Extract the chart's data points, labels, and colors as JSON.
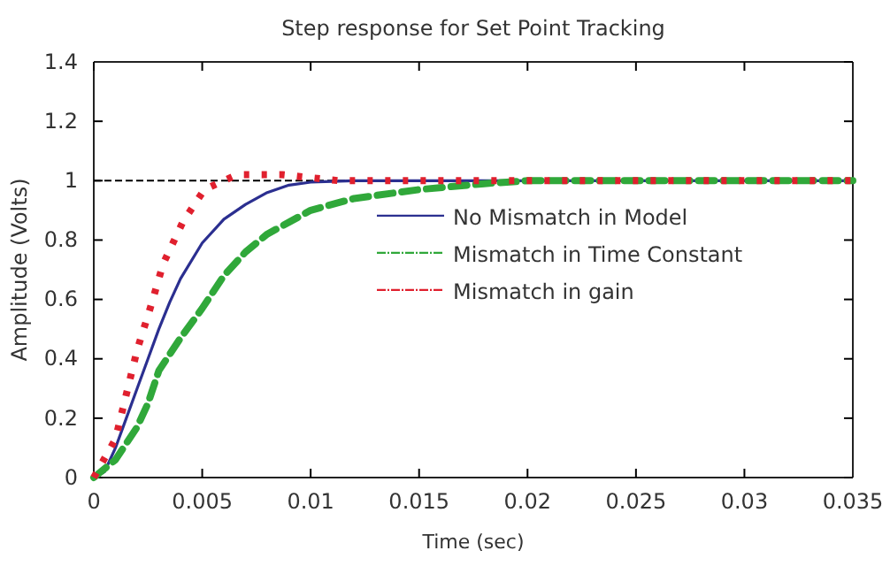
{
  "chart_data": {
    "type": "line",
    "title": "Step response for Set Point Tracking",
    "xlabel": "Time (sec)",
    "ylabel": "Amplitude (Volts)",
    "xlim": [
      0,
      0.035
    ],
    "xticks": [
      0,
      0.005,
      0.01,
      0.015,
      0.02,
      0.025,
      0.03,
      0.035
    ],
    "ylim": [
      0,
      1.4
    ],
    "yticks": [
      0,
      0.2,
      0.4,
      0.6,
      0.8,
      1,
      1.2,
      {
        "value": 1.4,
        "label": "1.4"
      }
    ],
    "grid": false,
    "legend": "right",
    "marker": "none",
    "ref_lines": [
      {
        "axis": "y",
        "value": 1,
        "color": "#000000",
        "line_style": "dashed"
      }
    ],
    "series": [
      {
        "name": "No Mismatch in Model",
        "color": "#2b2f90",
        "line_style": "solid",
        "x": [
          0,
          0.0005,
          0.001,
          0.0015,
          0.002,
          0.0025,
          0.003,
          0.0035,
          0.004,
          0.005,
          0.006,
          0.007,
          0.008,
          0.009,
          0.01,
          0.012,
          0.035
        ],
        "values": [
          0,
          0.02,
          0.1,
          0.2,
          0.3,
          0.4,
          0.5,
          0.59,
          0.67,
          0.79,
          0.87,
          0.92,
          0.96,
          0.985,
          0.995,
          1,
          1
        ]
      },
      {
        "name": "Mismatch in Time Constant",
        "color": "#30a83a",
        "line_style": "dashed",
        "x": [
          0,
          0.001,
          0.002,
          0.0025,
          0.003,
          0.004,
          0.005,
          0.006,
          0.007,
          0.008,
          0.01,
          0.012,
          0.015,
          0.018,
          0.02,
          0.035
        ],
        "values": [
          0,
          0.06,
          0.17,
          0.25,
          0.36,
          0.47,
          0.57,
          0.68,
          0.76,
          0.82,
          0.9,
          0.94,
          0.97,
          0.99,
          1,
          1
        ]
      },
      {
        "name": "Mismatch in gain",
        "color": "#e0202e",
        "line_style": "dotted",
        "x": [
          0,
          0.001,
          0.0015,
          0.002,
          0.0026,
          0.0032,
          0.0041,
          0.0051,
          0.0066,
          0.0087,
          0.0113,
          0.0133,
          0.0155,
          0.035
        ],
        "values": [
          0,
          0.13,
          0.28,
          0.43,
          0.57,
          0.72,
          0.86,
          0.97,
          1.02,
          1.02,
          1,
          1,
          1,
          1
        ]
      }
    ]
  }
}
